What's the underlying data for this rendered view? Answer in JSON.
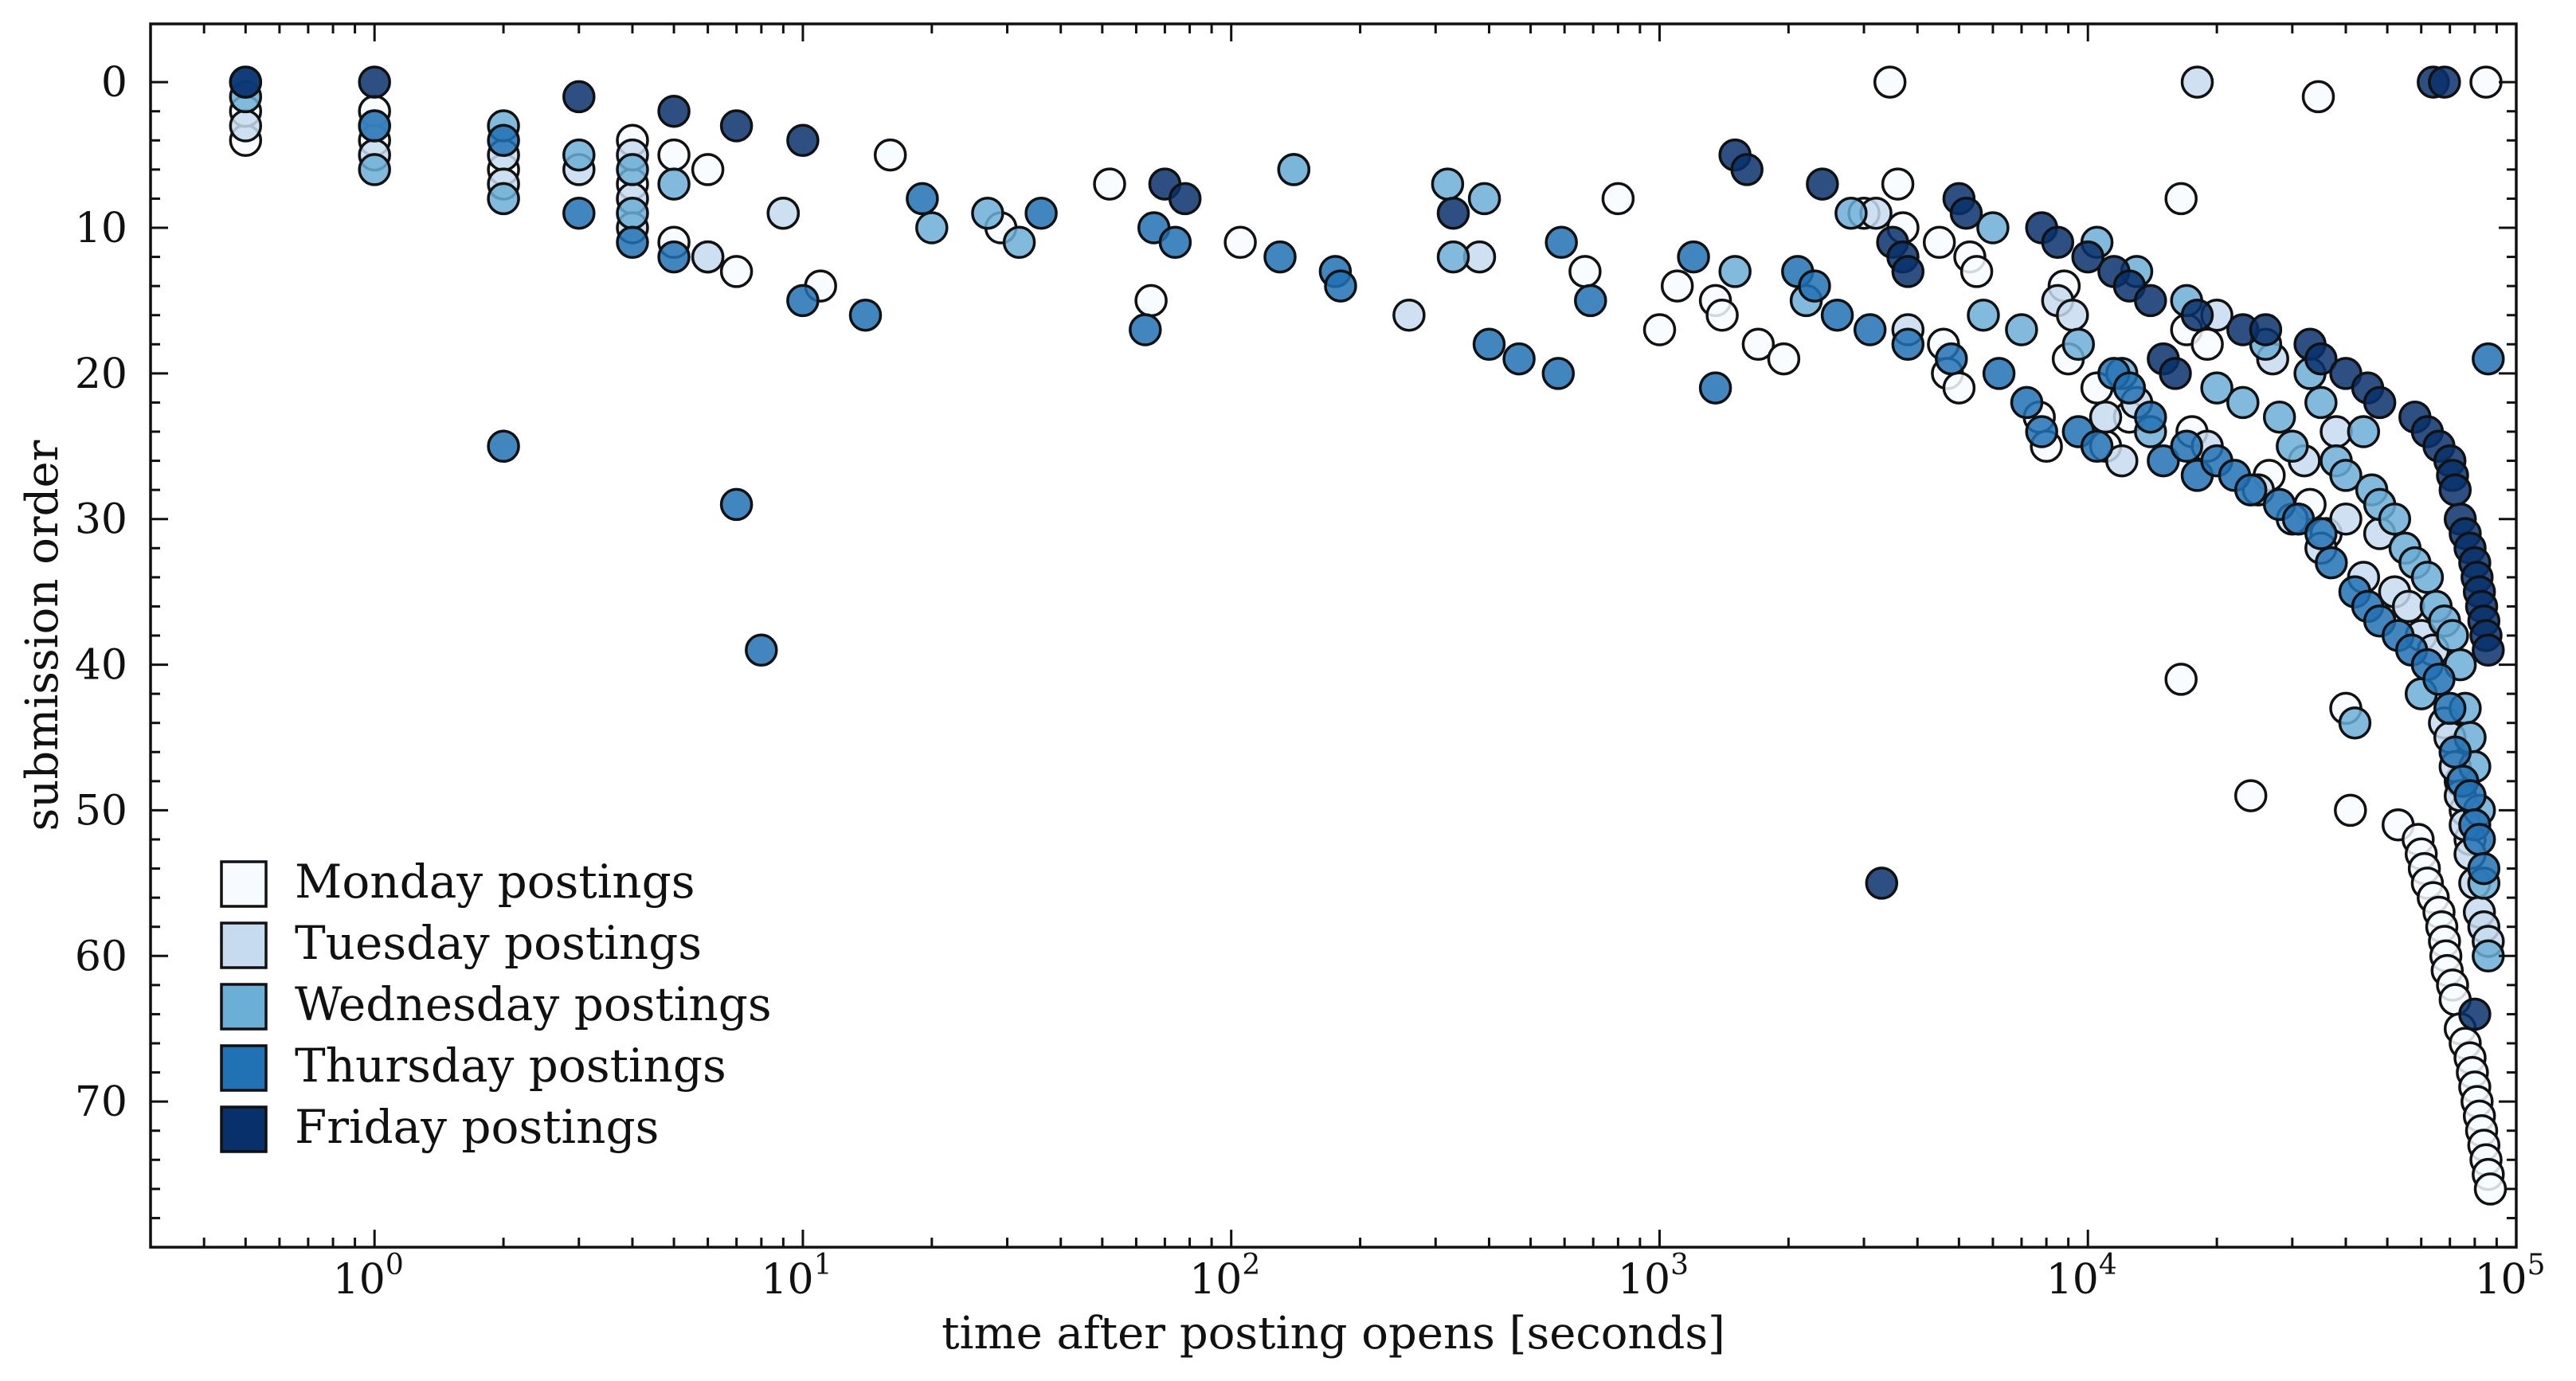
{
  "chart_data": {
    "type": "scatter",
    "title": "",
    "xlabel": "time after posting opens [seconds]",
    "ylabel": "submission order",
    "xscale": "log",
    "xlim": [
      0.3,
      100000
    ],
    "ylim": [
      80,
      -4
    ],
    "y_inverted": true,
    "x_major_ticks": [
      1,
      10,
      100,
      1000,
      10000,
      100000
    ],
    "x_tick_labels": [
      {
        "base": "10",
        "exp": "0"
      },
      {
        "base": "10",
        "exp": "1"
      },
      {
        "base": "10",
        "exp": "2"
      },
      {
        "base": "10",
        "exp": "3"
      },
      {
        "base": "10",
        "exp": "4"
      },
      {
        "base": "10",
        "exp": "5"
      }
    ],
    "y_ticks": [
      0,
      10,
      20,
      30,
      40,
      50,
      60,
      70
    ],
    "y_tick_labels": [
      "0",
      "10",
      "20",
      "30",
      "40",
      "50",
      "60",
      "70"
    ],
    "grid": false,
    "legend_position": "lower-left",
    "series": [
      {
        "name": "Monday postings",
        "color": "#f7fbff",
        "points": [
          [
            0.5,
            4
          ],
          [
            0.5,
            2
          ],
          [
            1,
            2
          ],
          [
            1,
            4
          ],
          [
            2,
            6
          ],
          [
            4,
            4
          ],
          [
            4,
            7
          ],
          [
            5,
            5
          ],
          [
            5,
            11
          ],
          [
            6,
            6
          ],
          [
            6,
            12
          ],
          [
            7,
            13
          ],
          [
            9,
            9
          ],
          [
            11,
            14
          ],
          [
            16,
            5
          ],
          [
            29,
            10
          ],
          [
            52,
            7
          ],
          [
            65,
            15
          ],
          [
            105,
            11
          ],
          [
            670,
            13
          ],
          [
            800,
            8
          ],
          [
            1000,
            17
          ],
          [
            1100,
            14
          ],
          [
            1350,
            15
          ],
          [
            1400,
            16
          ],
          [
            1700,
            18
          ],
          [
            1950,
            19
          ],
          [
            3000,
            9
          ],
          [
            3450,
            0
          ],
          [
            3600,
            7
          ],
          [
            3700,
            10
          ],
          [
            4500,
            11
          ],
          [
            4600,
            18
          ],
          [
            4700,
            20
          ],
          [
            5000,
            21
          ],
          [
            5300,
            12
          ],
          [
            5500,
            13
          ],
          [
            7700,
            23
          ],
          [
            8000,
            25
          ],
          [
            8800,
            14
          ],
          [
            9000,
            19
          ],
          [
            10500,
            21
          ],
          [
            11000,
            25
          ],
          [
            12500,
            23
          ],
          [
            16500,
            8
          ],
          [
            17000,
            17
          ],
          [
            17500,
            24
          ],
          [
            19000,
            18
          ],
          [
            16500,
            41
          ],
          [
            24000,
            49
          ],
          [
            26500,
            27
          ],
          [
            33000,
            29
          ],
          [
            34500,
            1
          ],
          [
            36000,
            31
          ],
          [
            40000,
            43
          ],
          [
            41000,
            50
          ],
          [
            53000,
            51
          ],
          [
            59000,
            52
          ],
          [
            60000,
            53
          ],
          [
            61000,
            54
          ],
          [
            62000,
            55
          ],
          [
            64000,
            56
          ],
          [
            66000,
            57
          ],
          [
            67000,
            58
          ],
          [
            68000,
            59
          ],
          [
            68500,
            60
          ],
          [
            69000,
            61
          ],
          [
            71000,
            62
          ],
          [
            72000,
            63
          ],
          [
            74000,
            65
          ],
          [
            76000,
            66
          ],
          [
            78000,
            67
          ],
          [
            79000,
            68
          ],
          [
            80000,
            69
          ],
          [
            81000,
            70
          ],
          [
            82000,
            71
          ],
          [
            83000,
            72
          ],
          [
            84000,
            73
          ],
          [
            85000,
            74
          ],
          [
            86000,
            75
          ],
          [
            87000,
            76
          ],
          [
            85000,
            0
          ],
          [
            72000,
            46
          ],
          [
            74000,
            48
          ],
          [
            76000,
            50
          ],
          [
            78000,
            52
          ]
        ]
      },
      {
        "name": "Tuesday postings",
        "color": "#c6dbef",
        "points": [
          [
            0.5,
            3
          ],
          [
            1,
            3
          ],
          [
            1,
            5
          ],
          [
            2,
            5
          ],
          [
            2,
            7
          ],
          [
            3,
            6
          ],
          [
            4,
            5
          ],
          [
            4,
            8
          ],
          [
            4,
            10
          ],
          [
            9,
            9
          ],
          [
            6,
            12
          ],
          [
            140,
            6
          ],
          [
            260,
            16
          ],
          [
            380,
            12
          ],
          [
            3200,
            9
          ],
          [
            3800,
            17
          ],
          [
            8500,
            15
          ],
          [
            9200,
            16
          ],
          [
            11000,
            23
          ],
          [
            12000,
            26
          ],
          [
            13000,
            22
          ],
          [
            18000,
            0
          ],
          [
            19000,
            25
          ],
          [
            20000,
            16
          ],
          [
            25000,
            28
          ],
          [
            27000,
            19
          ],
          [
            30000,
            30
          ],
          [
            32000,
            26
          ],
          [
            35000,
            32
          ],
          [
            38000,
            24
          ],
          [
            40000,
            30
          ],
          [
            44000,
            34
          ],
          [
            48000,
            31
          ],
          [
            52000,
            35
          ],
          [
            56000,
            36
          ],
          [
            60000,
            38
          ],
          [
            64000,
            39
          ],
          [
            68000,
            44
          ],
          [
            70000,
            45
          ],
          [
            72000,
            47
          ],
          [
            74000,
            49
          ],
          [
            76000,
            51
          ],
          [
            78000,
            53
          ],
          [
            80000,
            55
          ],
          [
            82000,
            57
          ],
          [
            84000,
            58
          ],
          [
            86000,
            59
          ]
        ]
      },
      {
        "name": "Wednesday postings",
        "color": "#6baed6",
        "points": [
          [
            0.5,
            1
          ],
          [
            1,
            6
          ],
          [
            2,
            3
          ],
          [
            2,
            8
          ],
          [
            3,
            5
          ],
          [
            4,
            6
          ],
          [
            4,
            9
          ],
          [
            5,
            7
          ],
          [
            20,
            10
          ],
          [
            27,
            9
          ],
          [
            32,
            11
          ],
          [
            140,
            6
          ],
          [
            320,
            7
          ],
          [
            330,
            12
          ],
          [
            390,
            8
          ],
          [
            1500,
            13
          ],
          [
            2200,
            15
          ],
          [
            2800,
            9
          ],
          [
            5700,
            16
          ],
          [
            6000,
            10
          ],
          [
            7000,
            17
          ],
          [
            9500,
            18
          ],
          [
            10500,
            11
          ],
          [
            12000,
            20
          ],
          [
            13000,
            13
          ],
          [
            14000,
            24
          ],
          [
            17000,
            15
          ],
          [
            20000,
            21
          ],
          [
            23000,
            22
          ],
          [
            26000,
            18
          ],
          [
            28000,
            23
          ],
          [
            30000,
            25
          ],
          [
            33000,
            20
          ],
          [
            35000,
            22
          ],
          [
            38000,
            26
          ],
          [
            40000,
            27
          ],
          [
            42000,
            44
          ],
          [
            44000,
            24
          ],
          [
            46000,
            28
          ],
          [
            48000,
            29
          ],
          [
            52000,
            30
          ],
          [
            55000,
            32
          ],
          [
            58000,
            33
          ],
          [
            60000,
            42
          ],
          [
            62000,
            34
          ],
          [
            65000,
            36
          ],
          [
            68000,
            37
          ],
          [
            71000,
            38
          ],
          [
            74000,
            40
          ],
          [
            76000,
            43
          ],
          [
            78000,
            45
          ],
          [
            80000,
            47
          ],
          [
            82000,
            50
          ],
          [
            84000,
            55
          ],
          [
            86000,
            60
          ]
        ]
      },
      {
        "name": "Thursday postings",
        "color": "#2171b5",
        "points": [
          [
            0.5,
            0
          ],
          [
            1,
            3
          ],
          [
            2,
            4
          ],
          [
            2,
            25
          ],
          [
            3,
            9
          ],
          [
            4,
            11
          ],
          [
            5,
            12
          ],
          [
            7,
            29
          ],
          [
            8,
            39
          ],
          [
            10,
            15
          ],
          [
            14,
            16
          ],
          [
            19,
            8
          ],
          [
            36,
            9
          ],
          [
            63,
            17
          ],
          [
            66,
            10
          ],
          [
            74,
            11
          ],
          [
            130,
            12
          ],
          [
            175,
            13
          ],
          [
            180,
            14
          ],
          [
            400,
            18
          ],
          [
            470,
            19
          ],
          [
            580,
            20
          ],
          [
            590,
            11
          ],
          [
            690,
            15
          ],
          [
            1200,
            12
          ],
          [
            1350,
            21
          ],
          [
            2100,
            13
          ],
          [
            2300,
            14
          ],
          [
            2600,
            16
          ],
          [
            3100,
            17
          ],
          [
            3800,
            18
          ],
          [
            4800,
            19
          ],
          [
            6200,
            20
          ],
          [
            7200,
            22
          ],
          [
            7800,
            24
          ],
          [
            9500,
            24
          ],
          [
            10500,
            25
          ],
          [
            11500,
            20
          ],
          [
            12500,
            21
          ],
          [
            14000,
            23
          ],
          [
            15000,
            26
          ],
          [
            17000,
            25
          ],
          [
            18000,
            27
          ],
          [
            20000,
            26
          ],
          [
            22000,
            27
          ],
          [
            24000,
            28
          ],
          [
            28000,
            29
          ],
          [
            31000,
            30
          ],
          [
            35000,
            31
          ],
          [
            37000,
            33
          ],
          [
            42000,
            35
          ],
          [
            45000,
            36
          ],
          [
            48000,
            37
          ],
          [
            53000,
            38
          ],
          [
            57000,
            39
          ],
          [
            62000,
            40
          ],
          [
            66000,
            41
          ],
          [
            70000,
            43
          ],
          [
            72000,
            46
          ],
          [
            75000,
            48
          ],
          [
            78000,
            49
          ],
          [
            80000,
            51
          ],
          [
            82000,
            52
          ],
          [
            84000,
            54
          ],
          [
            86000,
            19
          ]
        ]
      },
      {
        "name": "Friday postings",
        "color": "#08306b",
        "points": [
          [
            0.5,
            0
          ],
          [
            1,
            0
          ],
          [
            3,
            1
          ],
          [
            5,
            2
          ],
          [
            7,
            3
          ],
          [
            10,
            4
          ],
          [
            70,
            7
          ],
          [
            78,
            8
          ],
          [
            330,
            9
          ],
          [
            1500,
            5
          ],
          [
            1600,
            6
          ],
          [
            2400,
            7
          ],
          [
            3300,
            55
          ],
          [
            3500,
            11
          ],
          [
            3700,
            12
          ],
          [
            3800,
            13
          ],
          [
            5000,
            8
          ],
          [
            5200,
            9
          ],
          [
            7800,
            10
          ],
          [
            8500,
            11
          ],
          [
            10000,
            12
          ],
          [
            11500,
            13
          ],
          [
            12500,
            14
          ],
          [
            14000,
            15
          ],
          [
            15000,
            19
          ],
          [
            16000,
            20
          ],
          [
            18000,
            16
          ],
          [
            23000,
            17
          ],
          [
            26000,
            17
          ],
          [
            33000,
            18
          ],
          [
            35000,
            19
          ],
          [
            40000,
            20
          ],
          [
            45000,
            21
          ],
          [
            48000,
            22
          ],
          [
            58000,
            23
          ],
          [
            62000,
            24
          ],
          [
            64000,
            0
          ],
          [
            66000,
            25
          ],
          [
            68000,
            0
          ],
          [
            70000,
            26
          ],
          [
            71000,
            27
          ],
          [
            72000,
            28
          ],
          [
            74000,
            30
          ],
          [
            76000,
            31
          ],
          [
            78000,
            32
          ],
          [
            80000,
            33
          ],
          [
            81000,
            34
          ],
          [
            82000,
            35
          ],
          [
            83000,
            36
          ],
          [
            84000,
            37
          ],
          [
            85000,
            38
          ],
          [
            86000,
            39
          ],
          [
            80000,
            64
          ]
        ]
      }
    ]
  }
}
